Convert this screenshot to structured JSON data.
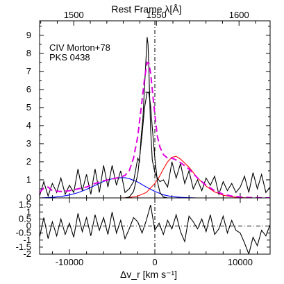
{
  "chart_data": [
    {
      "type": "line",
      "panel": "main",
      "xlabel": "Δv_r [km s⁻¹]",
      "top_xlabel": "Rest Frame λ[Å]",
      "top_ticks": [
        "1500",
        "1550",
        "1600"
      ],
      "top_tick_values_angstrom": [
        1500,
        1550,
        1600
      ],
      "ylabel": "",
      "xlim": [
        -13500,
        13500
      ],
      "ylim": [
        0,
        9.8
      ],
      "y_ticks": [
        "0",
        "1",
        "2",
        "3",
        "4",
        "5",
        "6",
        "7",
        "8",
        "9"
      ],
      "annotations": [
        "CIV Morton+78",
        "PKS 0438"
      ],
      "vertical_line_at": 0,
      "series": [
        {
          "style": "observed-profile",
          "color": "#000000",
          "x": [
            -13500,
            -13000,
            -12500,
            -12000,
            -11500,
            -11000,
            -10500,
            -10000,
            -9500,
            -9000,
            -8500,
            -8000,
            -7500,
            -7000,
            -6500,
            -6000,
            -5500,
            -5000,
            -4500,
            -4000,
            -3500,
            -3000,
            -2500,
            -2000,
            -1800,
            -1600,
            -1400,
            -1200,
            -1000,
            -900,
            -800,
            -700,
            -600,
            -500,
            -300,
            0,
            300,
            600,
            1000,
            1500,
            2000,
            2500,
            3000,
            3500,
            4000,
            4500,
            5000,
            5500,
            6000,
            6500,
            7000,
            7500,
            8000,
            8500,
            9000,
            9500,
            10000,
            10500,
            11000,
            11500,
            12000,
            12500,
            13000,
            13500
          ],
          "y": [
            0.1,
            0.9,
            0.1,
            0.8,
            0.3,
            1.1,
            0.2,
            0.7,
            0.3,
            1.6,
            0.4,
            1.3,
            0.2,
            1.6,
            0.3,
            1.8,
            0.6,
            1.8,
            0.7,
            1.5,
            0.3,
            0.5,
            0.9,
            2.2,
            2.0,
            3.4,
            4.4,
            6.2,
            8.0,
            8.9,
            8.5,
            7.2,
            5.5,
            3.8,
            2.1,
            1.4,
            1.1,
            0.9,
            1.0,
            0.6,
            2.0,
            1.1,
            1.9,
            0.8,
            1.5,
            0.5,
            1.0,
            0.4,
            1.1,
            0.7,
            1.2,
            0.2,
            0.9,
            0.4,
            0.8,
            0.3,
            0.6,
            1.2,
            0.3,
            1.4,
            0.5,
            1.3,
            0.3,
            0.6
          ]
        },
        {
          "style": "total-fit",
          "color": "#e000e0",
          "dash": true,
          "x": [
            -13500,
            -13000,
            -12500,
            -12000,
            -11000,
            -10000,
            -9000,
            -8000,
            -7000,
            -6000,
            -5000,
            -4000,
            -3500,
            -3000,
            -2500,
            -2000,
            -1500,
            -1200,
            -900,
            -700,
            -500,
            -300,
            0,
            300,
            600,
            1000,
            1500,
            2000,
            2500,
            3000,
            4000,
            5000,
            6000,
            7000,
            8000,
            9000,
            10000,
            11000,
            12000,
            13000,
            13500
          ],
          "y": [
            0.3,
            0.55,
            0.6,
            0.4,
            0.35,
            0.4,
            0.5,
            0.6,
            0.8,
            0.95,
            1.05,
            1.15,
            1.25,
            1.5,
            2.2,
            3.4,
            5.4,
            6.6,
            7.5,
            7.45,
            6.9,
            6.0,
            4.6,
            3.4,
            2.8,
            2.4,
            2.2,
            2.2,
            2.1,
            1.95,
            1.6,
            1.1,
            0.7,
            0.4,
            0.2,
            0.1,
            0.05,
            0.02,
            0.01,
            0.0,
            0.0
          ]
        },
        {
          "style": "broad-blue-component",
          "color": "#0000ff",
          "x": [
            -13500,
            -12000,
            -11000,
            -10000,
            -9000,
            -8000,
            -7000,
            -6000,
            -5000,
            -4000,
            -3500,
            -3000,
            -2000,
            -1000,
            0,
            1000,
            2000,
            3000,
            4000,
            5000,
            6000
          ],
          "y": [
            0.0,
            0.03,
            0.08,
            0.16,
            0.29,
            0.47,
            0.69,
            0.91,
            1.06,
            1.12,
            1.12,
            1.07,
            0.88,
            0.6,
            0.36,
            0.17,
            0.07,
            0.03,
            0.01,
            0.0,
            0.0
          ]
        },
        {
          "style": "narrow-black-component",
          "color": "#000000",
          "x": [
            -3500,
            -3000,
            -2500,
            -2000,
            -1500,
            -1200,
            -900,
            -700,
            -500,
            -300,
            0,
            300,
            600,
            1000,
            1500
          ],
          "y": [
            0.0,
            0.05,
            0.35,
            1.3,
            3.5,
            5.0,
            5.85,
            5.8,
            5.1,
            3.9,
            2.2,
            0.9,
            0.3,
            0.05,
            0.0
          ],
          "peak_x": -800,
          "peak_y": 5.85
        },
        {
          "style": "red-component",
          "color": "#ff0000",
          "x": [
            -4000,
            -3000,
            -2000,
            -1000,
            0,
            500,
            1000,
            1500,
            2000,
            2500,
            3000,
            4000,
            5000,
            6000,
            7000,
            8000,
            9000,
            10000,
            11000,
            12000,
            13500
          ],
          "y": [
            0.0,
            0.02,
            0.1,
            0.3,
            0.8,
            1.15,
            1.6,
            2.0,
            2.25,
            2.3,
            2.15,
            1.7,
            1.1,
            0.65,
            0.33,
            0.15,
            0.06,
            0.02,
            0.0,
            0.0,
            0.0
          ]
        }
      ]
    },
    {
      "type": "line",
      "panel": "residuals",
      "xlabel": "Δv_r [km s⁻¹]",
      "xlim": [
        -13500,
        13500
      ],
      "ylim": [
        -2,
        2
      ],
      "y_ticks": [
        "-2",
        "-1.5",
        "-1",
        "-0.5",
        "0",
        "0.5",
        "1",
        "1.5"
      ],
      "x_ticks": [
        "-10000",
        "0",
        "10000"
      ],
      "series": [
        {
          "style": "residual",
          "color": "#000000",
          "x": [
            -13500,
            -13000,
            -12500,
            -12000,
            -11500,
            -11000,
            -10500,
            -10000,
            -9500,
            -9000,
            -8500,
            -8000,
            -7500,
            -7000,
            -6500,
            -6000,
            -5500,
            -5000,
            -4500,
            -4000,
            -3500,
            -3000,
            -2500,
            -2000,
            -1500,
            -1000,
            -500,
            0,
            500,
            1000,
            1500,
            2000,
            2500,
            3000,
            3500,
            4000,
            4500,
            5000,
            5500,
            6000,
            6500,
            7000,
            7500,
            8000,
            8500,
            9000,
            9500,
            10000,
            10500,
            11000,
            11500,
            12000,
            12500,
            13000,
            13500
          ],
          "y": [
            -0.8,
            0.6,
            -0.9,
            0.3,
            -0.7,
            0.5,
            -0.6,
            0.2,
            -0.8,
            0.9,
            -0.4,
            0.6,
            -0.7,
            0.8,
            -0.3,
            0.6,
            -0.6,
            1.0,
            -0.5,
            0.4,
            -0.9,
            -0.2,
            0.6,
            0.3,
            -0.5,
            0.4,
            1.5,
            -0.3,
            0.2,
            -0.6,
            0.4,
            -0.2,
            0.8,
            -0.4,
            -1.1,
            0.7,
            0.3,
            -0.2,
            0.5,
            -0.4,
            0.8,
            -0.6,
            -0.2,
            0.7,
            -0.5,
            0.4,
            -0.3,
            -0.5,
            -1.2,
            -2.0,
            -0.8,
            -1.4,
            -0.3,
            -0.7,
            0.1
          ]
        }
      ]
    }
  ]
}
